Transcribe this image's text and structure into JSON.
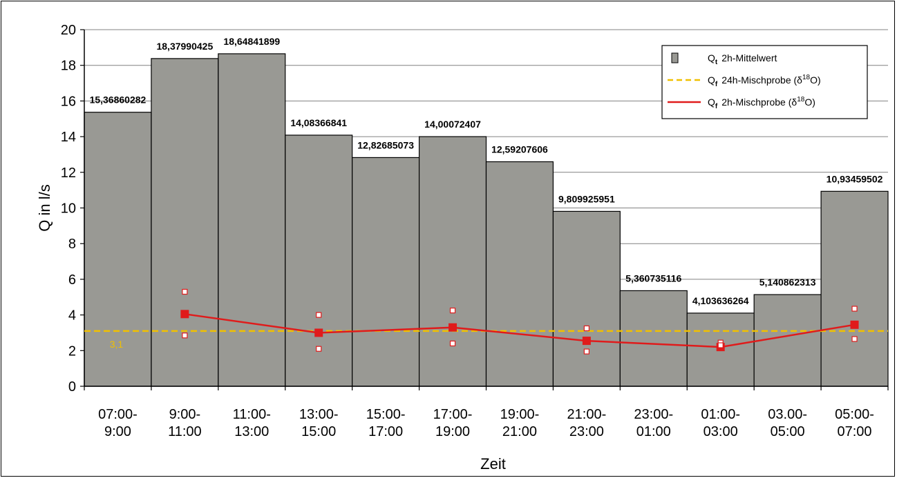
{
  "chart_data": {
    "type": "bar",
    "xlabel": "Zeit",
    "ylabel": "Q in l/s",
    "ylim": [
      0,
      20
    ],
    "yticks": [
      0,
      2,
      4,
      6,
      8,
      10,
      12,
      14,
      16,
      18,
      20
    ],
    "grid": true,
    "legend_position": "top-right",
    "categories": [
      [
        "07:00-",
        "9:00"
      ],
      [
        "9:00-",
        "11:00"
      ],
      [
        "11:00-",
        "13:00"
      ],
      [
        "13:00-",
        "15:00"
      ],
      [
        "15:00-",
        "17:00"
      ],
      [
        "17:00-",
        "19:00"
      ],
      [
        "19:00-",
        "21:00"
      ],
      [
        "21:00-",
        "23:00"
      ],
      [
        "23:00-",
        "01:00"
      ],
      [
        "01:00-",
        "03:00"
      ],
      [
        "03.00-",
        "05:00"
      ],
      [
        "05:00-",
        "07:00"
      ]
    ],
    "bars": {
      "values": [
        15.36860282,
        18.37990425,
        18.64841899,
        14.08366841,
        12.82685073,
        14.00072407,
        12.59207606,
        9.809925951,
        5.360735116,
        4.103636264,
        5.140862313,
        10.93459502
      ],
      "labels": [
        "15,36860282",
        "18,37990425",
        "18,64841899",
        "14,08366841",
        "12,82685073",
        "14,00072407",
        "12,59207606",
        "9,809925951",
        "5,360735116",
        "4,103636264",
        "5,140862313",
        "10,93459502"
      ],
      "color": "#999994"
    },
    "mix24": {
      "value": 3.1,
      "label": "3,1",
      "color": "#f0c000"
    },
    "mix2": {
      "points": [
        {
          "category_index": 1,
          "value": 4.05,
          "upper": 5.3,
          "lower": 2.85
        },
        {
          "category_index": 3,
          "value": 3.0,
          "upper": 4.0,
          "lower": 2.1
        },
        {
          "category_index": 5,
          "value": 3.3,
          "upper": 4.25,
          "lower": 2.4
        },
        {
          "category_index": 7,
          "value": 2.55,
          "upper": 3.25,
          "lower": 1.95
        },
        {
          "category_index": 9,
          "value": 2.2,
          "upper": 2.45,
          "lower": 2.3
        },
        {
          "category_index": 11,
          "value": 3.45,
          "upper": 4.35,
          "lower": 2.65
        }
      ],
      "color": "#e01b1b"
    },
    "legend": [
      {
        "symbol": "Q",
        "sub": "t",
        "text": "2h-Mittelwert",
        "type": "bar-swatch"
      },
      {
        "symbol": "Q",
        "sub": "f",
        "text": "24h-Mischprobe (δ",
        "sup": "18",
        "tail": "O)",
        "type": "dashed-line"
      },
      {
        "symbol": "Q",
        "sub": "f",
        "text": "2h-Mischprobe (δ",
        "sup": "18",
        "tail": "O)",
        "type": "solid-line"
      }
    ]
  }
}
